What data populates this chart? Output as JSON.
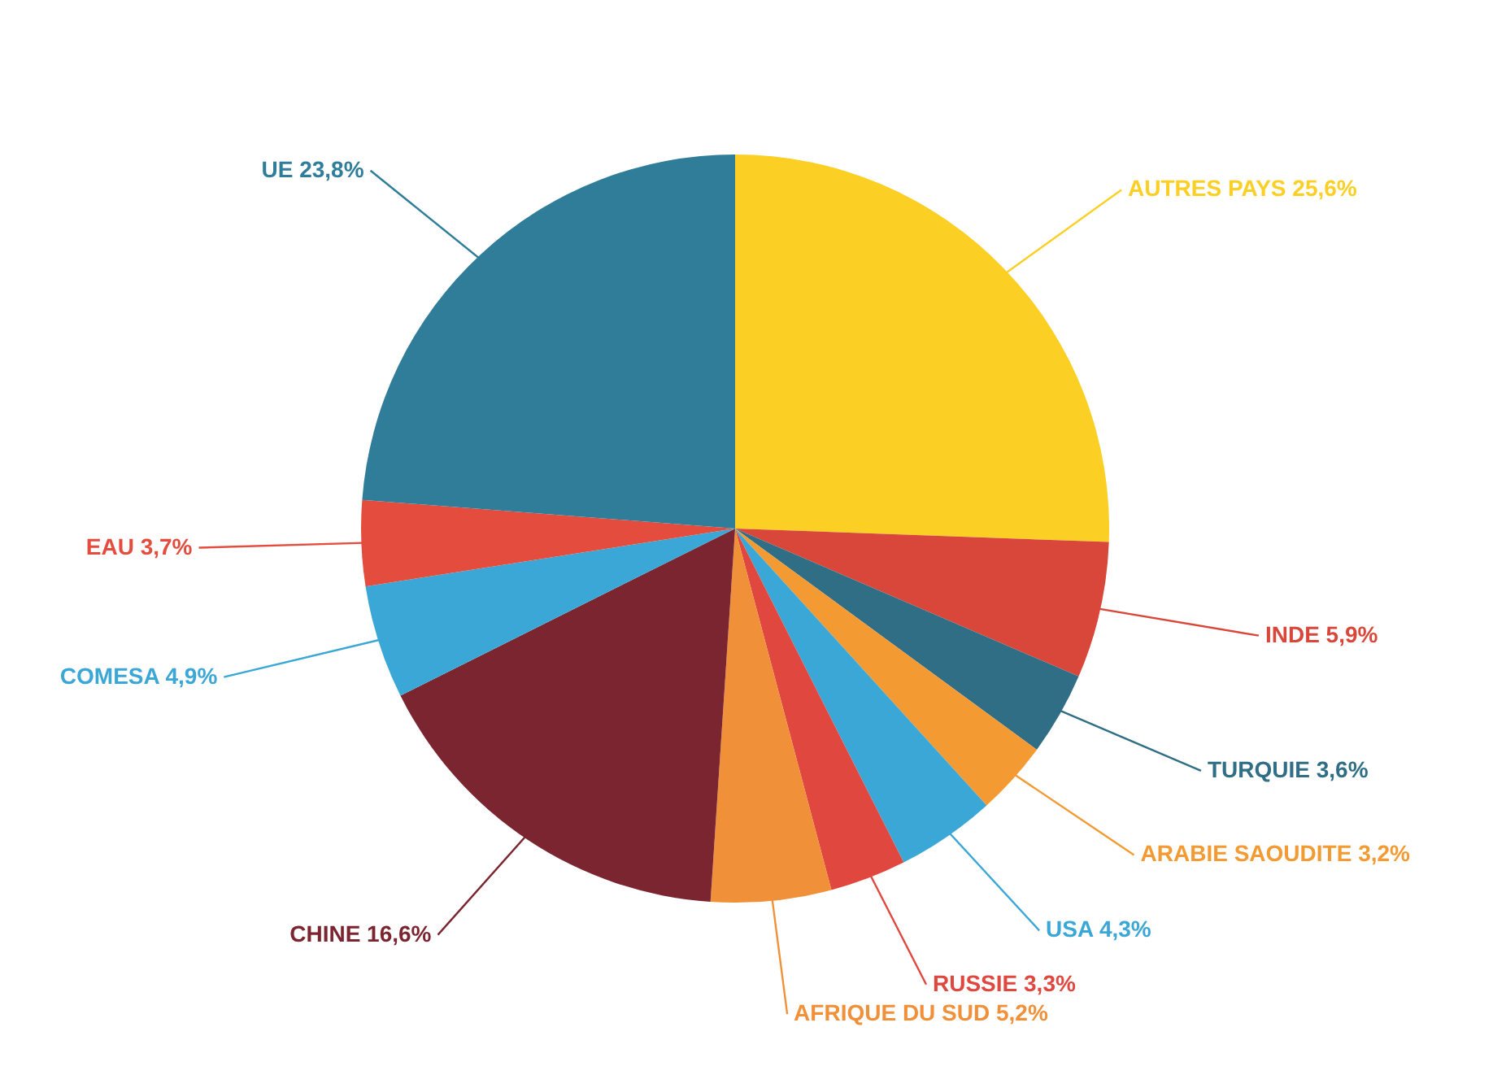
{
  "chart_data": {
    "type": "pie",
    "categories": [
      "AUTRES PAYS",
      "INDE",
      "TURQUIE",
      "ARABIE SAOUDITE",
      "USA",
      "RUSSIE",
      "AFRIQUE DU SUD",
      "CHINE",
      "COMESA",
      "EAU",
      "UE"
    ],
    "values": [
      25.6,
      5.9,
      3.6,
      3.2,
      4.3,
      3.3,
      5.2,
      16.6,
      4.9,
      3.7,
      23.8
    ],
    "value_labels": [
      "25,6%",
      "5,9%",
      "3,6%",
      "3,2%",
      "4,3%",
      "3,3%",
      "5,2%",
      "16,6%",
      "4,9%",
      "3,7%",
      "23,8%"
    ],
    "colors": [
      "#fccf24",
      "#d9473a",
      "#2f6e85",
      "#f39a33",
      "#3aa7d6",
      "#e0473e",
      "#f0913a",
      "#7a2530",
      "#3aa7d6",
      "#e44c3e",
      "#2f7d99"
    ]
  }
}
